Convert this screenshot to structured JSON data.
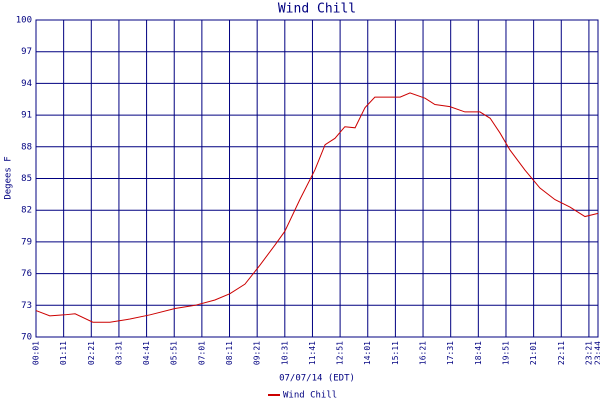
{
  "chart_data": {
    "type": "line",
    "title": "Wind Chill",
    "y_label": "Degees F",
    "x_label": "07/07/14 (EDT)",
    "xlim": [
      1,
      1424
    ],
    "ylim": [
      70,
      100
    ],
    "yticks": [
      70,
      73,
      76,
      79,
      82,
      85,
      88,
      91,
      94,
      97,
      100
    ],
    "xticks": [
      {
        "value": 1,
        "label": "00:01"
      },
      {
        "value": 71,
        "label": "01:11"
      },
      {
        "value": 141,
        "label": "02:21"
      },
      {
        "value": 211,
        "label": "03:31"
      },
      {
        "value": 281,
        "label": "04:41"
      },
      {
        "value": 351,
        "label": "05:51"
      },
      {
        "value": 421,
        "label": "07:01"
      },
      {
        "value": 491,
        "label": "08:11"
      },
      {
        "value": 561,
        "label": "09:21"
      },
      {
        "value": 631,
        "label": "10:31"
      },
      {
        "value": 701,
        "label": "11:41"
      },
      {
        "value": 771,
        "label": "12:51"
      },
      {
        "value": 841,
        "label": "14:01"
      },
      {
        "value": 911,
        "label": "15:11"
      },
      {
        "value": 981,
        "label": "16:21"
      },
      {
        "value": 1051,
        "label": "17:31"
      },
      {
        "value": 1121,
        "label": "18:41"
      },
      {
        "value": 1191,
        "label": "19:51"
      },
      {
        "value": 1261,
        "label": "21:01"
      },
      {
        "value": 1331,
        "label": "22:11"
      },
      {
        "value": 1401,
        "label": "23:21"
      },
      {
        "value": 1424,
        "label": "23:44"
      }
    ],
    "grid": true,
    "x": [
      1,
      36,
      74,
      100,
      145,
      188,
      239,
      290,
      353,
      404,
      454,
      492,
      530,
      568,
      606,
      631,
      669,
      707,
      733,
      758,
      783,
      809,
      834,
      859,
      897,
      923,
      948,
      986,
      1011,
      1049,
      1087,
      1125,
      1151,
      1176,
      1201,
      1239,
      1277,
      1315,
      1353,
      1391,
      1424
    ],
    "series": [
      {
        "name": "Wind Chill",
        "color": "#cc0000",
        "values": [
          72.5,
          72.0,
          72.1,
          72.2,
          71.4,
          71.4,
          71.7,
          72.1,
          72.7,
          73.0,
          73.5,
          74.1,
          75.0,
          76.8,
          78.7,
          80.0,
          83.0,
          85.8,
          88.2,
          88.8,
          89.9,
          89.8,
          91.7,
          92.7,
          92.7,
          92.7,
          93.1,
          92.6,
          92.0,
          91.8,
          91.3,
          91.3,
          90.7,
          89.3,
          87.7,
          85.8,
          84.1,
          83.0,
          82.3,
          81.4,
          81.7
        ]
      }
    ]
  }
}
